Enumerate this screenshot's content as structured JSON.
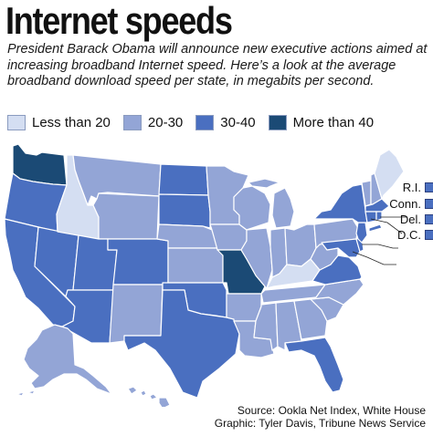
{
  "title": "Internet speeds",
  "subtitle": "President Barack Obama will announce new executive actions aimed at increasing broadband Internet speed. Here’s a look at the average broadband download speed per state, in megabits per second.",
  "legend": [
    {
      "label": "Less than 20",
      "color": "#d4def2"
    },
    {
      "label": "20-30",
      "color": "#93a5d6"
    },
    {
      "label": "30-40",
      "color": "#4a6fc0"
    },
    {
      "label": "More than 40",
      "color": "#1b4a75"
    }
  ],
  "state_categories": {
    "less_than_20": [
      "ID",
      "KY",
      "ME",
      "MT-SW"
    ],
    "20_30": [
      "MT",
      "WY",
      "NM",
      "ND-W",
      "NE",
      "KS",
      "MN",
      "IA",
      "WI",
      "MI",
      "IL",
      "IN",
      "OH",
      "AR",
      "LA",
      "MS",
      "AL",
      "TN",
      "GA",
      "SC",
      "NC",
      "WV",
      "PA",
      "VT",
      "NH",
      "AK",
      "HI"
    ],
    "30_40": [
      "OR",
      "CA",
      "NV",
      "UT",
      "AZ",
      "CO",
      "ND",
      "SD",
      "OK",
      "TX",
      "FL",
      "NY",
      "VA",
      "MD",
      "NJ",
      "MA",
      "DE",
      "RI",
      "CT",
      "DC"
    ],
    "more_than_40": [
      "WA",
      "MO"
    ]
  },
  "small_states": [
    {
      "label": "R.I.",
      "color": "#4a6fc0"
    },
    {
      "label": "Conn.",
      "color": "#4a6fc0"
    },
    {
      "label": "Del.",
      "color": "#4a6fc0"
    },
    {
      "label": "D.C.",
      "color": "#4a6fc0"
    }
  ],
  "source": {
    "line1": "Source: Ookla Net Index, White House",
    "line2": "Graphic: Tyler Davis, Tribune News Service"
  }
}
